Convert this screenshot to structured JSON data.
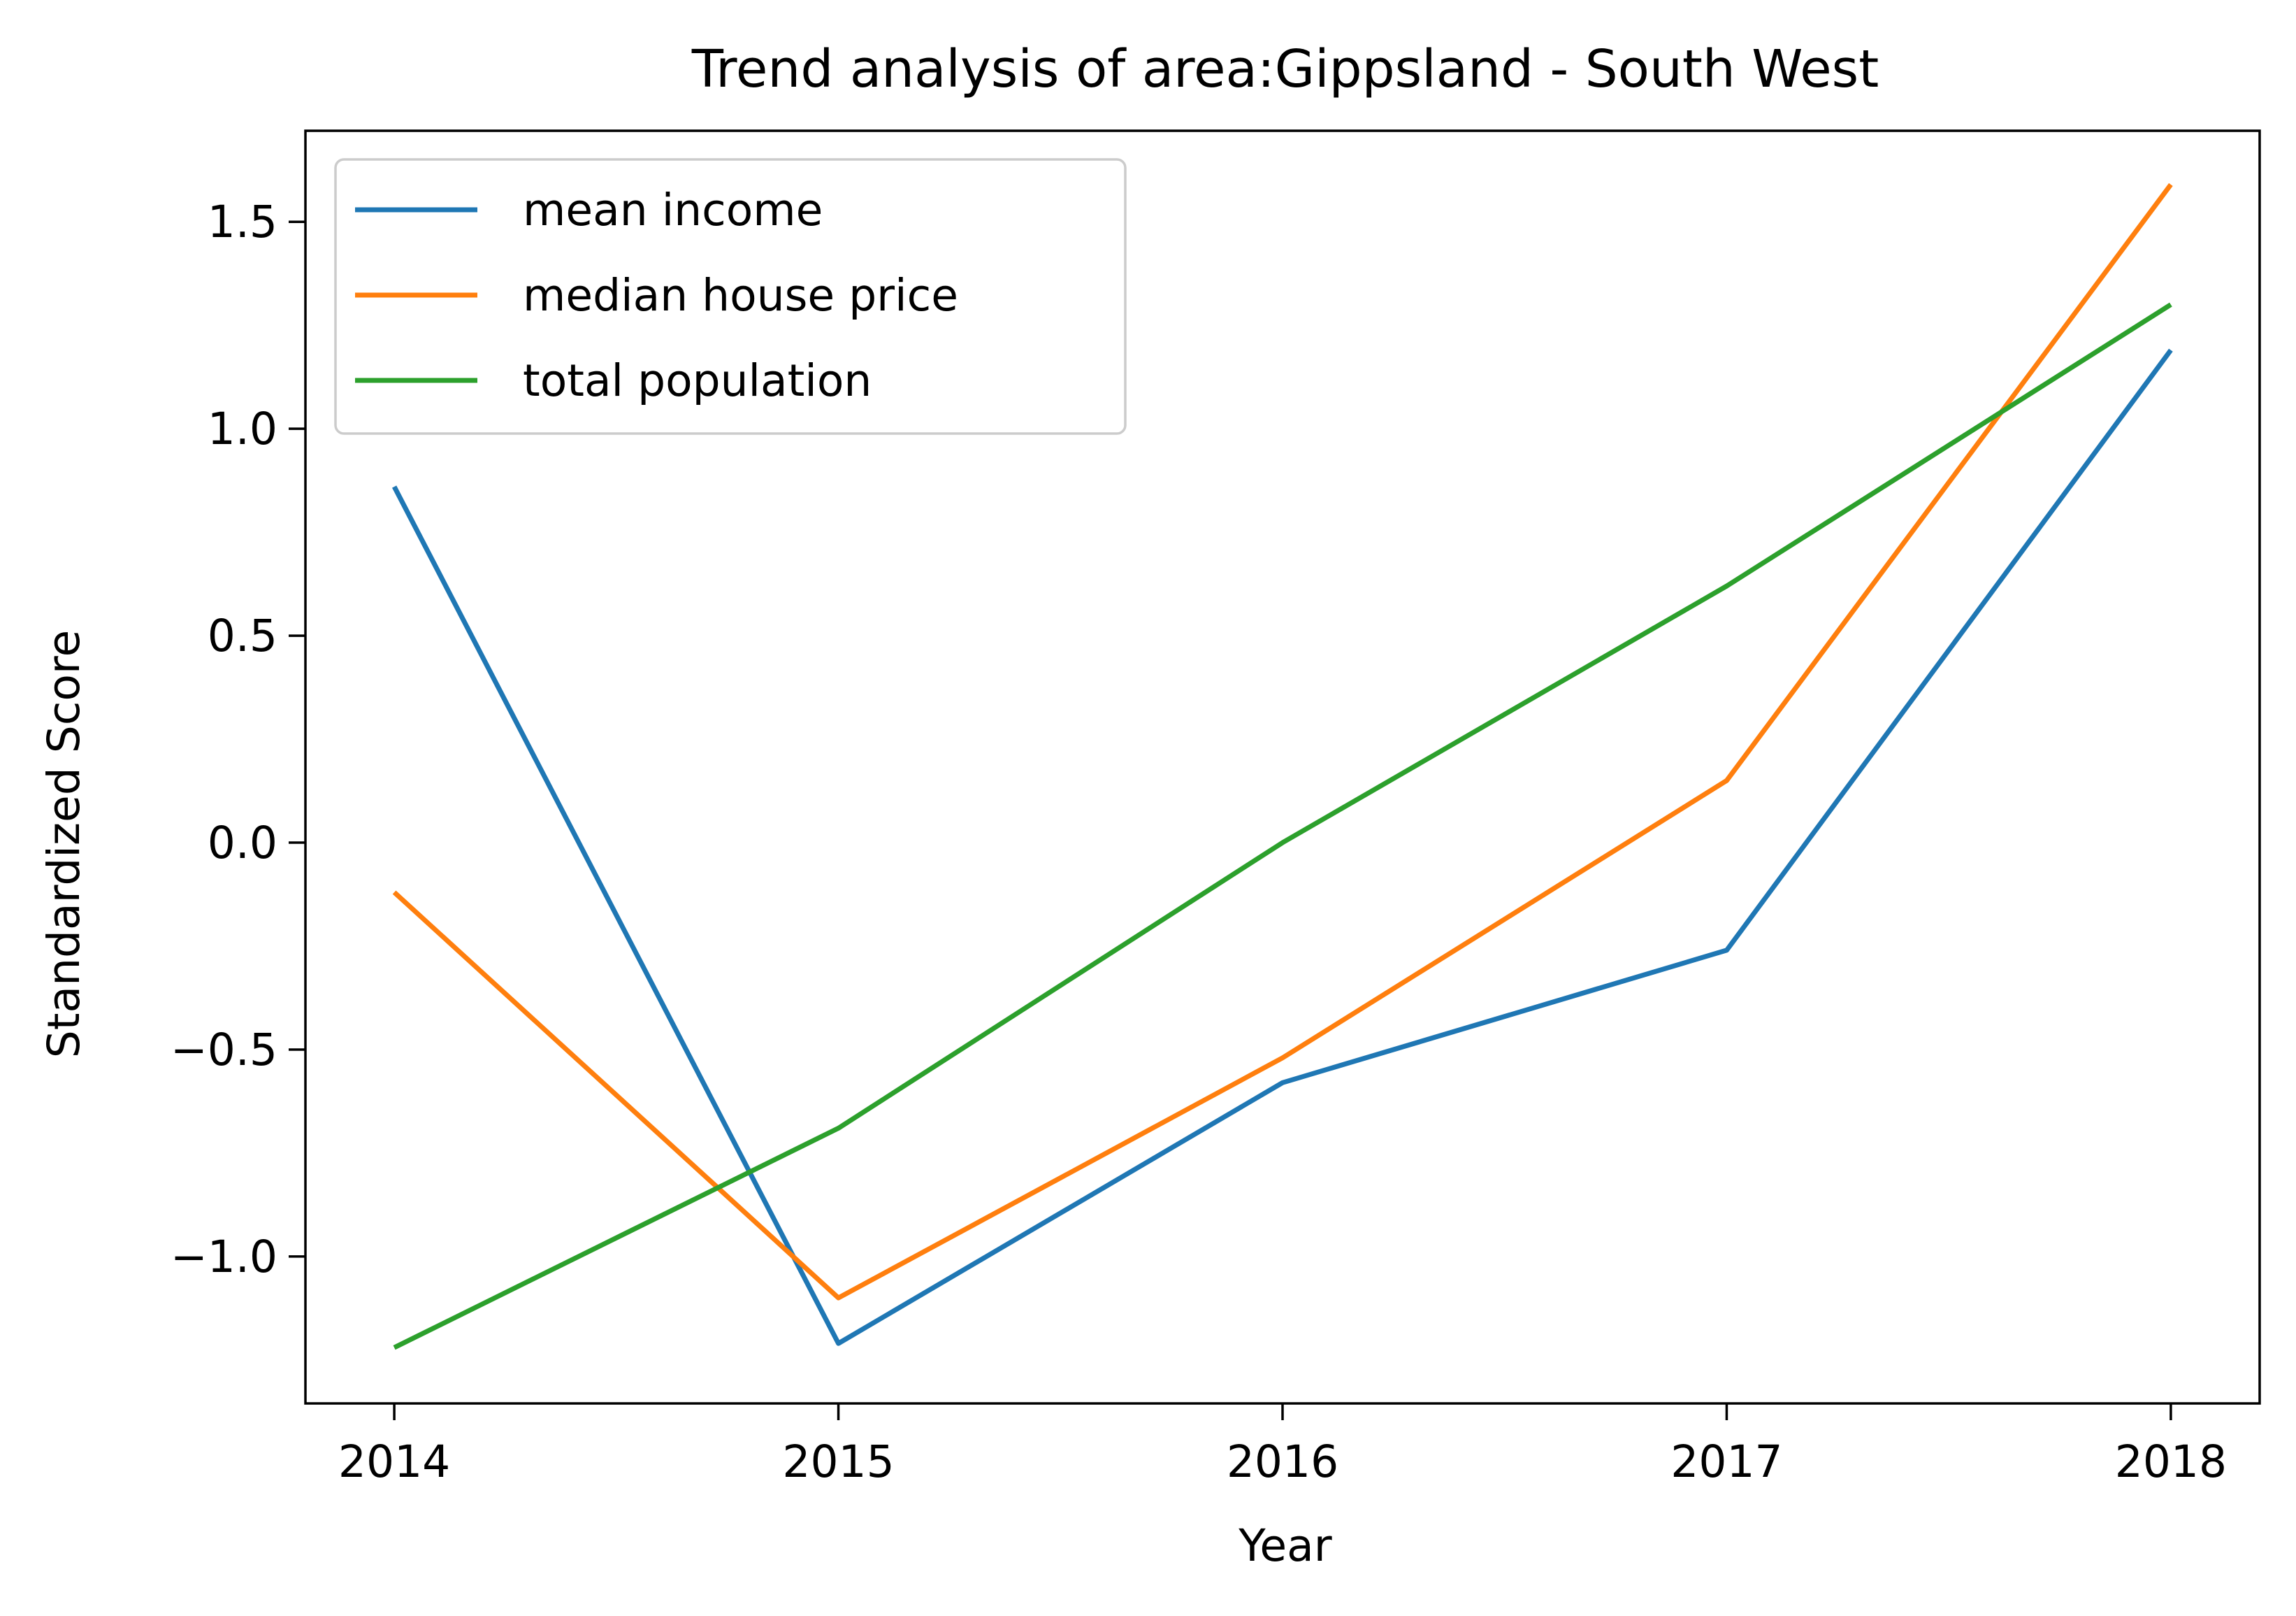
{
  "chart_data": {
    "type": "line",
    "title": "Trend analysis of area:Gippsland - South West",
    "xlabel": "Year",
    "ylabel": "Standardized Score",
    "x": [
      2014,
      2015,
      2016,
      2017,
      2018
    ],
    "x_ticks": [
      "2014",
      "2015",
      "2016",
      "2017",
      "2018"
    ],
    "y_ticks": [
      -1.0,
      -0.5,
      0.0,
      0.5,
      1.0,
      1.5
    ],
    "y_tick_labels": [
      "−1.0",
      "−0.5",
      "0.0",
      "0.5",
      "1.0",
      "1.5"
    ],
    "xlim": [
      2013.8,
      2018.2
    ],
    "ylim": [
      -1.355,
      1.72
    ],
    "grid": false,
    "legend_position": "top-left",
    "series": [
      {
        "name": "mean income",
        "color": "#1f77b4",
        "values": [
          0.86,
          -1.21,
          -0.58,
          -0.26,
          1.19
        ]
      },
      {
        "name": "median house price",
        "color": "#ff7f0e",
        "values": [
          -0.12,
          -1.1,
          -0.52,
          0.15,
          1.59
        ]
      },
      {
        "name": "total population",
        "color": "#2ca02c",
        "values": [
          -1.22,
          -0.69,
          0.0,
          0.62,
          1.3
        ]
      }
    ]
  }
}
